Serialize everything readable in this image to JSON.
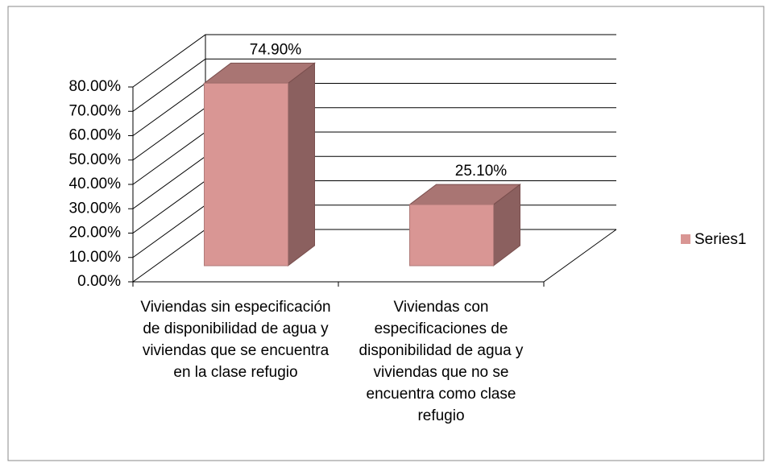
{
  "chart_data": {
    "type": "bar3d",
    "categories": [
      "Viviendas sin especificación de disponibilidad de agua y viviendas que se encuentra en la clase refugio",
      "Viviendas con especificaciones de disponibilidad de agua y viviendas que no se encuentra como clase refugio"
    ],
    "series": [
      {
        "name": "Series1",
        "color": "#d99694",
        "values": [
          74.9,
          25.1
        ],
        "value_labels": [
          "74.90%",
          "25.10%"
        ]
      }
    ],
    "ylim": [
      0,
      80
    ],
    "yticks": [
      {
        "value": 0,
        "label": "0.00%"
      },
      {
        "value": 10,
        "label": "10.00%"
      },
      {
        "value": 20,
        "label": "20.00%"
      },
      {
        "value": 30,
        "label": "30.00%"
      },
      {
        "value": 40,
        "label": "40.00%"
      },
      {
        "value": 50,
        "label": "50.00%"
      },
      {
        "value": 60,
        "label": "60.00%"
      },
      {
        "value": 70,
        "label": "70.00%"
      },
      {
        "value": 80,
        "label": "80.00%"
      }
    ],
    "grid": true,
    "legend": "right"
  }
}
